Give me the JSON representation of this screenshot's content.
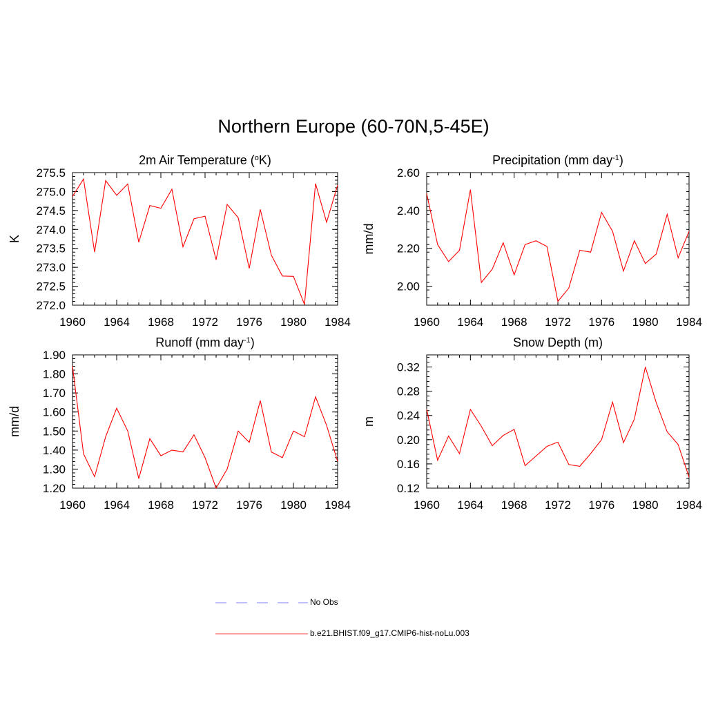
{
  "figure": {
    "title": "Northern Europe (60-70N,5-45E)"
  },
  "chart_data": [
    {
      "type": "line",
      "title": "2m Air Temperature (°K)",
      "title_parts": [
        "2m Air Temperature (",
        "o",
        "K)"
      ],
      "ylabel": "K",
      "xlim": [
        1960,
        1984
      ],
      "ylim": [
        272.0,
        275.5
      ],
      "xticks": [
        "1960",
        "1964",
        "1968",
        "1972",
        "1976",
        "1980",
        "1984"
      ],
      "yticks": [
        "272.0",
        "272.5",
        "273.0",
        "273.5",
        "274.0",
        "274.5",
        "275.0",
        "275.5"
      ],
      "series": [
        {
          "color": "#ff0000",
          "x": [
            1960,
            1961,
            1962,
            1963,
            1964,
            1965,
            1966,
            1967,
            1968,
            1969,
            1970,
            1971,
            1972,
            1973,
            1974,
            1975,
            1976,
            1977,
            1978,
            1979,
            1980,
            1981,
            1982,
            1983,
            1984
          ],
          "values": [
            274.87,
            275.33,
            273.4,
            275.29,
            274.9,
            275.2,
            273.66,
            274.63,
            274.56,
            275.06,
            273.54,
            274.28,
            274.35,
            273.2,
            274.66,
            274.31,
            272.97,
            274.53,
            273.32,
            272.77,
            272.76,
            272.02,
            275.21,
            274.19,
            275.17
          ]
        }
      ]
    },
    {
      "type": "line",
      "title": "Precipitation (mm day-1)",
      "title_parts": [
        "Precipitation (mm day",
        "-1",
        ")"
      ],
      "ylabel": "mm/d",
      "xlim": [
        1960,
        1984
      ],
      "ylim": [
        1.9,
        2.6
      ],
      "xticks": [
        "1960",
        "1964",
        "1968",
        "1972",
        "1976",
        "1980",
        "1984"
      ],
      "yticks": [
        "2.00",
        "2.20",
        "2.40",
        "2.60"
      ],
      "series": [
        {
          "color": "#ff0000",
          "x": [
            1960,
            1961,
            1962,
            1963,
            1964,
            1965,
            1966,
            1967,
            1968,
            1969,
            1970,
            1971,
            1972,
            1973,
            1974,
            1975,
            1976,
            1977,
            1978,
            1979,
            1980,
            1981,
            1982,
            1983,
            1984
          ],
          "values": [
            2.49,
            2.22,
            2.13,
            2.19,
            2.51,
            2.02,
            2.09,
            2.23,
            2.06,
            2.22,
            2.24,
            2.21,
            1.92,
            1.99,
            2.19,
            2.18,
            2.39,
            2.29,
            2.08,
            2.24,
            2.12,
            2.17,
            2.38,
            2.15,
            2.29
          ]
        }
      ]
    },
    {
      "type": "line",
      "title": "Runoff (mm day-1)",
      "title_parts": [
        "Runoff (mm day",
        "-1",
        ")"
      ],
      "ylabel": "mm/d",
      "xlim": [
        1960,
        1984
      ],
      "ylim": [
        1.2,
        1.9
      ],
      "xticks": [
        "1960",
        "1964",
        "1968",
        "1972",
        "1976",
        "1980",
        "1984"
      ],
      "yticks": [
        "1.20",
        "1.30",
        "1.40",
        "1.50",
        "1.60",
        "1.70",
        "1.80",
        "1.90"
      ],
      "series": [
        {
          "color": "#ff0000",
          "x": [
            1960,
            1961,
            1962,
            1963,
            1964,
            1965,
            1966,
            1967,
            1968,
            1969,
            1970,
            1971,
            1972,
            1973,
            1974,
            1975,
            1976,
            1977,
            1978,
            1979,
            1980,
            1981,
            1982,
            1983,
            1984
          ],
          "values": [
            1.84,
            1.38,
            1.26,
            1.47,
            1.62,
            1.5,
            1.25,
            1.46,
            1.37,
            1.4,
            1.39,
            1.48,
            1.36,
            1.2,
            1.3,
            1.5,
            1.44,
            1.66,
            1.39,
            1.36,
            1.5,
            1.47,
            1.68,
            1.53,
            1.34
          ]
        }
      ]
    },
    {
      "type": "line",
      "title": "Snow Depth (m)",
      "title_parts": [
        "Snow Depth (m)",
        "",
        ""
      ],
      "ylabel": "m",
      "xlim": [
        1960,
        1984
      ],
      "ylim": [
        0.12,
        0.34
      ],
      "xticks": [
        "1960",
        "1964",
        "1968",
        "1972",
        "1976",
        "1980",
        "1984"
      ],
      "yticks": [
        "0.12",
        "0.16",
        "0.20",
        "0.24",
        "0.28",
        "0.32"
      ],
      "series": [
        {
          "color": "#ff0000",
          "x": [
            1960,
            1961,
            1962,
            1963,
            1964,
            1965,
            1966,
            1967,
            1968,
            1969,
            1970,
            1971,
            1972,
            1973,
            1974,
            1975,
            1976,
            1977,
            1978,
            1979,
            1980,
            1981,
            1982,
            1983,
            1984
          ],
          "values": [
            0.25,
            0.166,
            0.206,
            0.177,
            0.25,
            0.222,
            0.19,
            0.207,
            0.217,
            0.157,
            0.173,
            0.189,
            0.196,
            0.159,
            0.156,
            0.177,
            0.2,
            0.262,
            0.195,
            0.234,
            0.32,
            0.261,
            0.213,
            0.192,
            0.138
          ]
        }
      ]
    }
  ],
  "legend": {
    "items": [
      {
        "label": "No Obs",
        "color": "#9999ff",
        "style": "dashed"
      },
      {
        "label": "b.e21.BHIST.f09_g17.CMIP6-hist-noLu.003",
        "color": "#ff6666",
        "style": "solid"
      }
    ]
  }
}
